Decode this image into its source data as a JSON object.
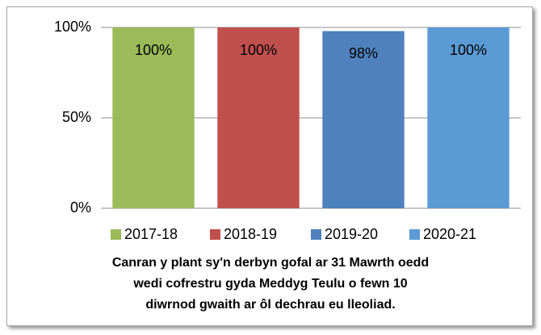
{
  "chart_data": {
    "type": "bar",
    "title": "Canran y plant sy'n derbyn gofal ar 31 Mawrth oedd\nwedi cofrestru gyda Meddyg Teulu o fewn 10\ndiwrnod gwaith ar ôl dechrau eu lleoliad.",
    "categories": [
      null
    ],
    "series": [
      {
        "name": "2017-18",
        "color": "#9bbb59",
        "values": [
          100
        ],
        "value_labels": [
          "100%"
        ]
      },
      {
        "name": "2018-19",
        "color": "#c0504d",
        "values": [
          100
        ],
        "value_labels": [
          "100%"
        ]
      },
      {
        "name": "2019-20",
        "color": "#4f81bd",
        "values": [
          98
        ],
        "value_labels": [
          "98%"
        ]
      },
      {
        "name": "2020-21",
        "color": "#5b9bd5",
        "values": [
          100
        ],
        "value_labels": [
          "100%"
        ]
      }
    ],
    "ylim": [
      0,
      100
    ],
    "yticks": [
      {
        "value": 0,
        "label": "0%"
      },
      {
        "value": 50,
        "label": "50%"
      },
      {
        "value": 100,
        "label": "100%"
      }
    ],
    "grid": true,
    "legend": "bottom"
  }
}
